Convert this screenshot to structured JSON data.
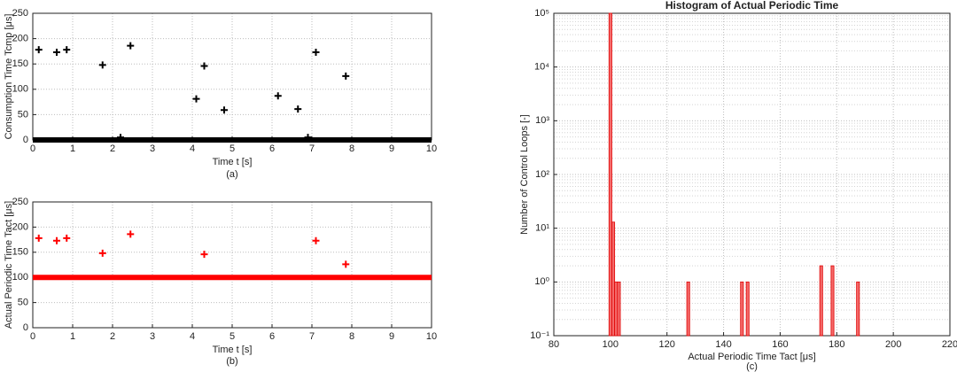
{
  "chart_data": [
    {
      "type": "scatter",
      "x_label": "Time t [s]",
      "y_label": "Consumption Time Tcmp [μs]",
      "caption": "(a)",
      "xlim": [
        0,
        10
      ],
      "ylim": [
        0,
        250
      ],
      "xticks": [
        0,
        1,
        2,
        3,
        4,
        5,
        6,
        7,
        8,
        9,
        10
      ],
      "yticks": [
        0,
        50,
        100,
        150,
        200,
        250
      ],
      "grid": true,
      "series": [
        {
          "color": "#000000",
          "marker": "plus",
          "x": [
            0.15,
            0.6,
            0.85,
            1.75,
            2.2,
            2.45,
            4.1,
            4.3,
            4.8,
            6.15,
            6.65,
            6.9,
            7.1,
            7.85
          ],
          "values": [
            178,
            173,
            178,
            148,
            5,
            186,
            81,
            146,
            59,
            87,
            61,
            5,
            173,
            126
          ]
        },
        {
          "color": "#000000",
          "marker": "band",
          "x": [
            0,
            10
          ],
          "values": [
            0,
            0
          ]
        }
      ]
    },
    {
      "type": "scatter",
      "x_label": "Time t [s]",
      "y_label": "Actual Periodic Time Tact [μs]",
      "caption": "(b)",
      "xlim": [
        0,
        10
      ],
      "ylim": [
        0,
        250
      ],
      "xticks": [
        0,
        1,
        2,
        3,
        4,
        5,
        6,
        7,
        8,
        9,
        10
      ],
      "yticks": [
        0,
        50,
        100,
        150,
        200,
        250
      ],
      "grid": true,
      "series": [
        {
          "color": "#ff0000",
          "marker": "plus",
          "x": [
            0.15,
            0.6,
            0.85,
            1.75,
            2.45,
            4.3,
            7.1,
            7.85
          ],
          "values": [
            178,
            173,
            178,
            148,
            186,
            146,
            173,
            126
          ]
        },
        {
          "color": "#ff0000",
          "marker": "band",
          "x": [
            0,
            10
          ],
          "values": [
            100,
            100
          ]
        }
      ]
    },
    {
      "type": "bar",
      "title": "Histogram of Actual Periodic Time",
      "x_label": "Actual Periodic Time Tact [μs]",
      "y_label": "Number of Control Loops [-]",
      "caption": "(c)",
      "xlim": [
        80,
        220
      ],
      "ylim": [
        0.1,
        100000
      ],
      "log_y": true,
      "grid": true,
      "xticks": [
        80,
        100,
        120,
        140,
        160,
        180,
        200,
        220
      ],
      "yticks": [
        {
          "value": 0.1,
          "label": "10⁻¹"
        },
        {
          "value": 1,
          "label": "10⁰"
        },
        {
          "value": 10,
          "label": "10¹"
        },
        {
          "value": 100,
          "label": "10²"
        },
        {
          "value": 1000,
          "label": "10³"
        },
        {
          "value": 10000,
          "label": "10⁴"
        },
        {
          "value": 100000,
          "label": "10⁵"
        }
      ],
      "color": "#f46a6a",
      "edge_color": "#e00000",
      "bar_width": 1,
      "x": [
        100,
        101,
        102,
        103,
        127.5,
        146.5,
        148.5,
        174.5,
        178.5,
        187.5
      ],
      "values": [
        100000,
        13,
        1,
        1,
        1,
        1,
        1,
        2,
        2,
        1
      ]
    }
  ]
}
